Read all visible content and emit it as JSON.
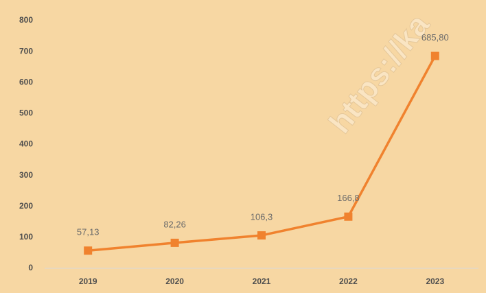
{
  "chart_data": {
    "type": "line",
    "categories": [
      "2019",
      "2020",
      "2021",
      "2022",
      "2023"
    ],
    "values": [
      57.13,
      82.26,
      106.3,
      166.8,
      685.8
    ],
    "value_labels": [
      "57,13",
      "82,26",
      "106,3",
      "166,8",
      "685,80"
    ],
    "color": "#f0822e",
    "ylim": [
      0,
      800
    ],
    "yticks": [
      0,
      100,
      200,
      300,
      400,
      500,
      600,
      700,
      800
    ],
    "grid": false,
    "watermark": "https://ka"
  }
}
